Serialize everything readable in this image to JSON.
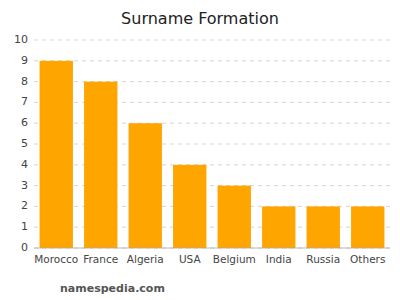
{
  "chart_data": {
    "type": "bar",
    "title": "Surname Formation",
    "categories": [
      "Morocco",
      "France",
      "Algeria",
      "USA",
      "Belgium",
      "India",
      "Russia",
      "Others"
    ],
    "values": [
      9,
      8,
      6,
      4,
      3,
      2,
      2,
      2
    ],
    "color": "#FFA500",
    "ylim": [
      0,
      10
    ],
    "yticks": [
      0,
      1,
      2,
      3,
      4,
      5,
      6,
      7,
      8,
      9,
      10
    ],
    "grid": true,
    "annotations": [
      "namespedia.com"
    ]
  }
}
